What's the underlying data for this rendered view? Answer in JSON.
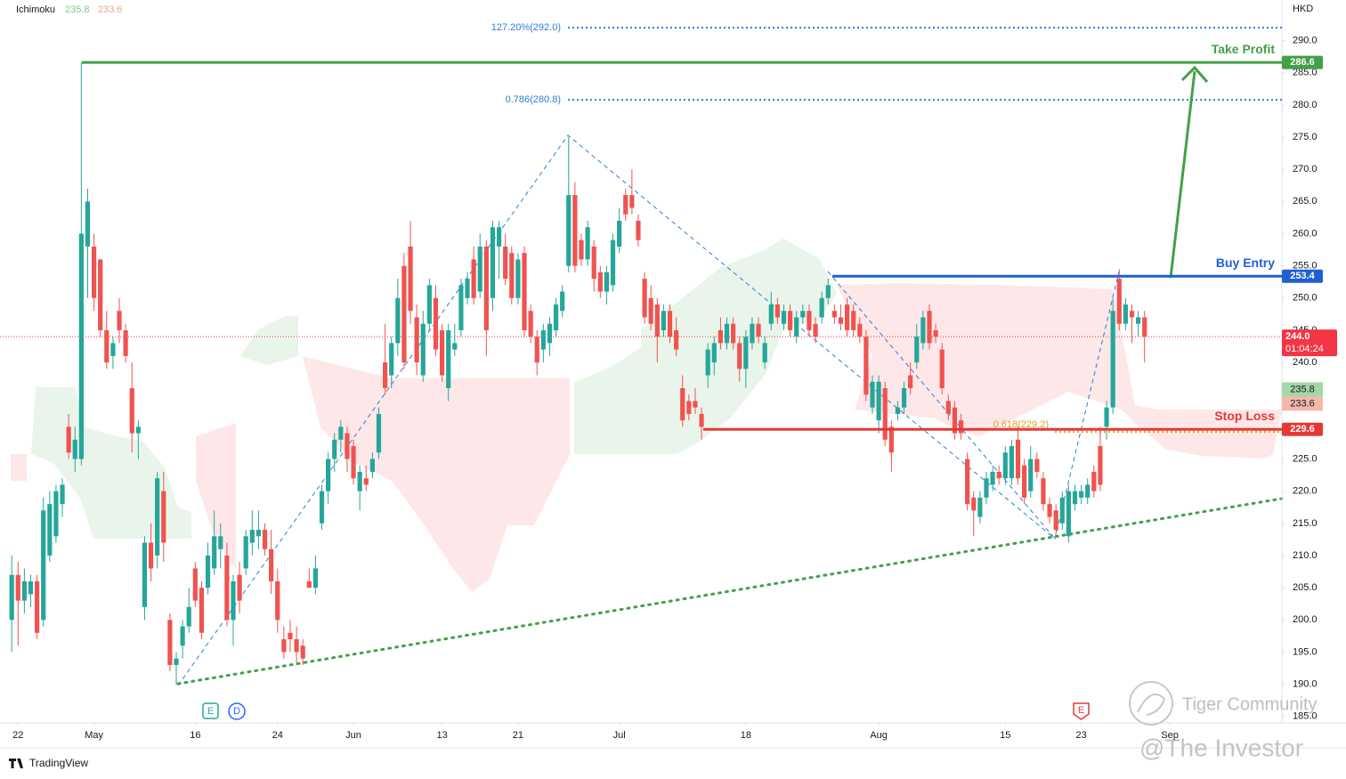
{
  "chart_data": {
    "type": "candlestick",
    "indicator": {
      "name": "Ichimoku",
      "values": [
        235.8,
        233.6
      ]
    },
    "currency": "HKD",
    "ylim": [
      184,
      296.3
    ],
    "yticks": [
      {
        "value": 185,
        "label": "185.0"
      },
      {
        "value": 190,
        "label": "190.0"
      },
      {
        "value": 195,
        "label": "195.0"
      },
      {
        "value": 200,
        "label": "200.0"
      },
      {
        "value": 205,
        "label": "205.0"
      },
      {
        "value": 210,
        "label": "210.0"
      },
      {
        "value": 215,
        "label": "215.0"
      },
      {
        "value": 220,
        "label": "220.0"
      },
      {
        "value": 225,
        "label": "225.0"
      },
      {
        "value": 230,
        "label": "230.0"
      },
      {
        "value": 235,
        "label": "235.0"
      },
      {
        "value": 240,
        "label": "240.0"
      },
      {
        "value": 245,
        "label": "245.0"
      },
      {
        "value": 250,
        "label": "250.0"
      },
      {
        "value": 255,
        "label": "255.0"
      },
      {
        "value": 260,
        "label": "260.0"
      },
      {
        "value": 265,
        "label": "265.0"
      },
      {
        "value": 270,
        "label": "270.0"
      },
      {
        "value": 275,
        "label": "275.0"
      },
      {
        "value": 280,
        "label": "280.0"
      },
      {
        "value": 285,
        "label": "285.0"
      },
      {
        "value": 290,
        "label": "290.0"
      }
    ],
    "xlim": [
      -1.5,
      200
    ],
    "xticks": [
      {
        "value": 1,
        "label": "22"
      },
      {
        "value": 13,
        "label": "May"
      },
      {
        "value": 29,
        "label": "16"
      },
      {
        "value": 42,
        "label": "24"
      },
      {
        "value": 54,
        "label": "Jun"
      },
      {
        "value": 68,
        "label": "13"
      },
      {
        "value": 80,
        "label": "21"
      },
      {
        "value": 96,
        "label": "Jul"
      },
      {
        "value": 116,
        "label": "18"
      },
      {
        "value": 137,
        "label": "Aug"
      },
      {
        "value": 157,
        "label": "15"
      },
      {
        "value": 169,
        "label": "23"
      },
      {
        "value": 183,
        "label": "Sep"
      }
    ],
    "colors": {
      "up": "#26a69a",
      "down": "#ef5350"
    },
    "ohlc": [
      [
        200,
        210,
        195,
        207
      ],
      [
        207,
        209,
        196,
        203
      ],
      [
        203,
        208,
        201,
        206
      ],
      [
        204,
        207,
        202,
        206
      ],
      [
        206,
        207,
        197,
        198
      ],
      [
        200,
        219,
        199,
        217
      ],
      [
        210,
        220,
        209,
        218
      ],
      [
        213,
        221,
        212,
        220
      ],
      [
        218,
        222,
        216,
        221
      ],
      [
        230,
        232,
        225,
        226
      ],
      [
        225,
        230,
        223,
        228
      ],
      [
        225,
        286.6,
        224,
        260
      ],
      [
        258,
        267,
        250,
        265
      ],
      [
        258,
        260,
        248,
        250
      ],
      [
        256,
        256,
        244,
        245
      ],
      [
        245,
        248,
        239,
        240
      ],
      [
        241,
        244,
        239,
        243
      ],
      [
        248,
        250,
        243,
        245
      ],
      [
        245,
        246,
        240,
        241
      ],
      [
        236,
        240,
        226,
        229
      ],
      [
        229,
        231,
        225,
        230
      ],
      [
        202,
        213,
        200,
        212
      ],
      [
        212,
        215,
        206,
        208
      ],
      [
        210,
        223,
        208,
        222
      ],
      [
        220,
        223,
        209,
        212
      ],
      [
        200,
        201,
        192,
        193
      ],
      [
        193,
        195,
        190,
        194
      ],
      [
        196,
        200,
        194,
        199
      ],
      [
        199,
        205,
        198,
        202
      ],
      [
        208,
        209,
        202,
        203
      ],
      [
        205,
        206,
        197,
        198
      ],
      [
        205,
        212,
        204,
        210
      ],
      [
        208,
        217,
        207,
        213
      ],
      [
        211,
        215,
        208,
        213
      ],
      [
        210,
        212,
        199,
        200
      ],
      [
        200,
        207,
        196,
        206
      ],
      [
        207,
        209,
        201,
        203
      ],
      [
        208,
        214,
        207,
        213
      ],
      [
        212,
        217,
        210,
        214
      ],
      [
        213,
        217,
        211,
        214
      ],
      [
        214,
        215,
        210,
        211
      ],
      [
        211,
        214,
        204,
        206
      ],
      [
        206,
        208,
        198,
        200
      ],
      [
        197,
        199,
        194,
        195
      ],
      [
        198,
        200,
        195,
        197
      ],
      [
        197,
        199,
        193,
        195
      ],
      [
        196,
        197,
        193,
        194
      ],
      [
        206,
        208,
        205,
        205
      ],
      [
        205,
        210,
        204,
        208
      ],
      [
        215,
        221,
        214,
        220
      ],
      [
        220,
        226,
        218,
        225
      ],
      [
        225,
        229,
        223,
        228
      ],
      [
        228,
        231,
        226,
        230
      ],
      [
        229,
        230,
        223,
        225
      ],
      [
        227,
        228,
        221,
        222
      ],
      [
        220,
        224,
        217,
        223
      ],
      [
        222,
        224,
        220,
        221
      ],
      [
        223,
        226,
        222,
        225
      ],
      [
        226,
        233,
        225,
        232
      ],
      [
        240,
        246,
        235,
        236
      ],
      [
        238,
        244,
        236,
        243
      ],
      [
        243,
        253,
        241,
        250
      ],
      [
        255,
        257,
        239,
        240
      ],
      [
        258,
        262,
        246,
        248
      ],
      [
        247,
        249,
        238,
        240
      ],
      [
        238,
        248,
        237,
        246
      ],
      [
        246,
        253,
        245,
        252
      ],
      [
        250,
        252,
        241,
        242
      ],
      [
        245,
        246,
        237,
        238
      ],
      [
        236,
        246,
        234,
        245
      ],
      [
        242,
        246,
        241,
        243
      ],
      [
        245,
        253,
        244,
        252
      ],
      [
        250,
        254,
        249,
        253
      ],
      [
        256,
        258,
        249,
        250
      ],
      [
        251,
        260,
        250,
        258
      ],
      [
        258,
        259,
        241,
        245
      ],
      [
        250,
        262,
        248,
        261
      ],
      [
        258,
        262,
        253,
        261
      ],
      [
        258,
        260,
        252,
        253
      ],
      [
        257,
        258,
        249,
        250
      ],
      [
        250,
        257,
        249,
        256
      ],
      [
        257,
        258,
        244,
        245
      ],
      [
        248,
        249,
        243,
        244
      ],
      [
        244,
        245,
        238,
        240
      ],
      [
        242,
        246,
        240,
        245
      ],
      [
        243,
        247,
        241,
        246
      ],
      [
        245,
        250,
        244,
        249
      ],
      [
        248,
        252,
        247,
        251
      ],
      [
        255,
        275,
        254,
        266
      ],
      [
        266,
        268,
        254,
        255
      ],
      [
        259,
        260,
        255,
        256
      ],
      [
        256,
        262,
        255,
        261
      ],
      [
        258,
        259,
        251,
        253
      ],
      [
        254,
        255,
        250,
        251
      ],
      [
        251,
        255,
        249,
        254
      ],
      [
        252,
        260,
        251,
        259
      ],
      [
        258,
        264,
        257,
        262
      ],
      [
        266,
        267,
        262,
        263
      ],
      [
        266,
        270,
        263,
        264
      ],
      [
        262,
        263,
        258,
        259
      ],
      [
        253,
        254,
        246,
        247
      ],
      [
        250,
        252,
        245,
        246
      ],
      [
        249,
        250,
        240,
        244
      ],
      [
        245,
        249,
        244,
        248
      ],
      [
        248,
        249,
        243,
        244
      ],
      [
        245,
        247,
        241,
        242
      ],
      [
        236,
        238,
        230,
        231
      ],
      [
        234,
        235,
        231,
        232
      ],
      [
        234,
        236,
        232,
        233
      ],
      [
        232,
        233,
        228,
        230
      ],
      [
        238,
        243,
        236,
        242
      ],
      [
        240,
        244,
        238,
        243
      ],
      [
        245,
        247,
        242,
        243
      ],
      [
        243,
        247,
        242,
        246
      ],
      [
        246,
        247,
        242,
        243
      ],
      [
        243,
        244,
        237,
        239
      ],
      [
        239,
        245,
        236,
        244
      ],
      [
        243,
        247,
        242,
        246
      ],
      [
        246,
        247,
        243,
        244
      ],
      [
        240,
        244,
        239,
        243
      ],
      [
        246,
        251,
        245,
        249
      ],
      [
        249,
        250,
        246,
        247
      ],
      [
        246,
        249,
        245,
        248
      ],
      [
        248,
        249,
        244,
        245
      ],
      [
        244,
        248,
        243,
        247
      ],
      [
        247,
        249,
        246,
        248
      ],
      [
        248,
        249,
        244,
        245
      ],
      [
        246,
        247,
        243,
        244
      ],
      [
        247,
        251,
        246,
        250
      ],
      [
        250,
        253,
        249,
        252
      ],
      [
        248,
        249,
        246,
        247
      ],
      [
        247,
        249,
        245,
        246
      ],
      [
        249,
        250,
        244,
        245
      ],
      [
        248,
        249,
        244,
        245
      ],
      [
        246,
        247,
        243,
        244
      ],
      [
        244,
        245,
        234,
        235
      ],
      [
        233,
        238,
        232,
        237
      ],
      [
        231,
        238,
        229,
        237
      ],
      [
        236,
        237,
        227,
        228
      ],
      [
        230,
        231,
        223,
        226
      ],
      [
        232,
        234,
        231,
        233
      ],
      [
        233,
        237,
        232,
        236
      ],
      [
        238,
        240,
        235,
        236
      ],
      [
        240,
        246,
        239,
        244
      ],
      [
        243,
        248,
        242,
        247
      ],
      [
        248,
        249,
        242,
        243
      ],
      [
        245,
        246,
        243,
        244
      ],
      [
        242,
        243,
        235,
        236
      ],
      [
        234,
        235,
        231,
        232
      ],
      [
        233,
        234,
        228,
        229
      ],
      [
        231,
        232,
        228,
        229
      ],
      [
        225,
        226,
        217,
        218
      ],
      [
        219,
        220,
        213,
        217
      ],
      [
        216,
        220,
        215,
        219
      ],
      [
        219,
        223,
        218,
        222
      ],
      [
        221,
        224,
        220,
        223
      ],
      [
        223,
        224,
        221,
        222
      ],
      [
        222,
        227,
        221,
        226
      ],
      [
        222,
        228,
        221,
        227
      ],
      [
        228,
        230,
        221,
        222
      ],
      [
        224,
        225,
        218,
        219
      ],
      [
        220,
        227,
        219,
        225
      ],
      [
        225,
        226,
        222,
        223
      ],
      [
        222,
        223,
        217,
        218
      ],
      [
        218,
        219,
        215,
        216
      ],
      [
        217,
        218,
        213,
        214
      ],
      [
        215,
        220,
        214,
        219
      ],
      [
        213,
        221,
        212,
        220
      ],
      [
        218,
        221,
        217,
        220
      ],
      [
        219,
        221,
        218,
        220
      ],
      [
        219,
        222,
        218,
        221
      ],
      [
        223,
        224,
        219,
        220
      ],
      [
        227,
        230,
        220,
        221
      ],
      [
        230,
        234,
        228,
        233
      ],
      [
        233,
        250,
        232,
        248
      ],
      [
        253,
        254.5,
        245,
        246
      ],
      [
        246,
        250,
        245,
        249
      ],
      [
        248,
        249,
        243,
        247
      ],
      [
        246,
        248,
        244,
        247
      ],
      [
        247,
        248,
        240,
        244
      ]
    ],
    "levels": [
      {
        "name": "Take Profit",
        "value": 286.6,
        "color": "#43a047"
      },
      {
        "name": "Buy Entry",
        "value": 253.4,
        "color": "#1e5fd6"
      },
      {
        "name": "Stop Loss",
        "value": 229.6,
        "color": "#e53935"
      }
    ],
    "fib": [
      {
        "label": "127.20%(292.0)",
        "value": 292.0
      },
      {
        "label": "0.786(280.8)",
        "value": 280.8
      },
      {
        "label": "0.618(229.2)",
        "value": 229.2
      }
    ],
    "last_price": {
      "value": 244.0,
      "label": "244.0"
    },
    "countdown": "01:04:24",
    "events": [
      "E",
      "D",
      "E"
    ],
    "brand": "TradingView",
    "watermark": [
      "Tiger Community",
      "@The Investor"
    ]
  }
}
